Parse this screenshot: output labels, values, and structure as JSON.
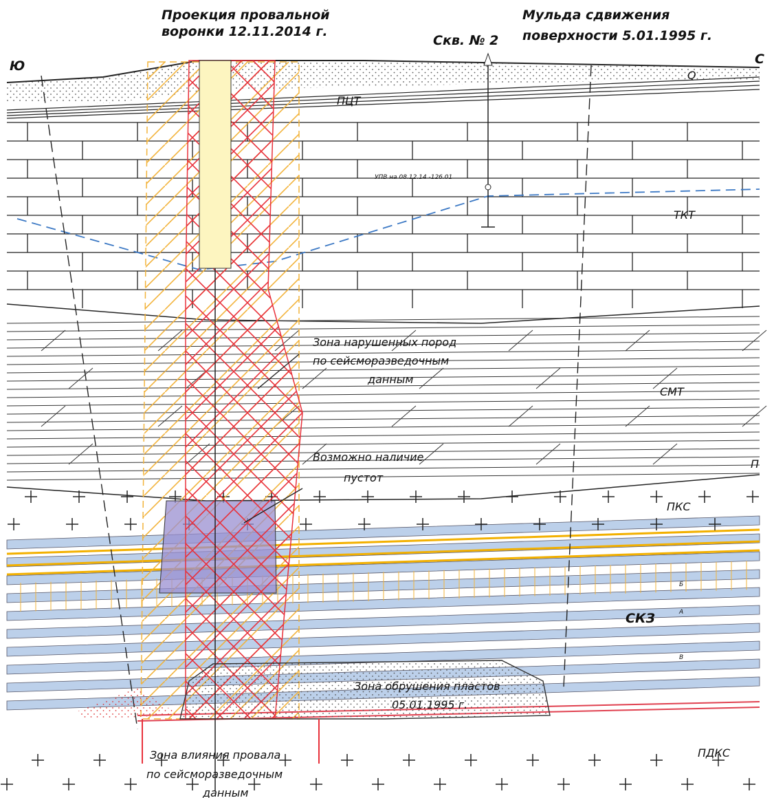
{
  "diagram": {
    "caption_left": [
      "Проекция провальной",
      "воронки 12.11.2014 г."
    ],
    "caption_right": [
      "Мульда сдвижения",
      "поверхности 5.01.1995 г."
    ],
    "borehole": "Скв. № 2",
    "south": "Ю",
    "north": "С",
    "layers": {
      "q": "Q",
      "pct": "ПЦТ",
      "tkt": "ТКТ",
      "smt": "СМТ",
      "p": "П",
      "pks": "ПКС",
      "skz": "СКЗ",
      "pdks": "ПДКС"
    },
    "water_level": "УПВ на 08.12.14 -126.01",
    "zone_disturbed": [
      "Зона нарушенных пород",
      "по сейсморазведочным",
      "данным"
    ],
    "zone_voids": [
      "Возможно наличие",
      "пустот"
    ],
    "zone_collapse": [
      "Зона обрушения пластов",
      "05.01.1995 г."
    ],
    "zone_influence": [
      "Зона влияния провала",
      "по сейсморазведочным",
      "данным"
    ],
    "seam_labels": [
      "Б",
      "А",
      "В"
    ]
  }
}
